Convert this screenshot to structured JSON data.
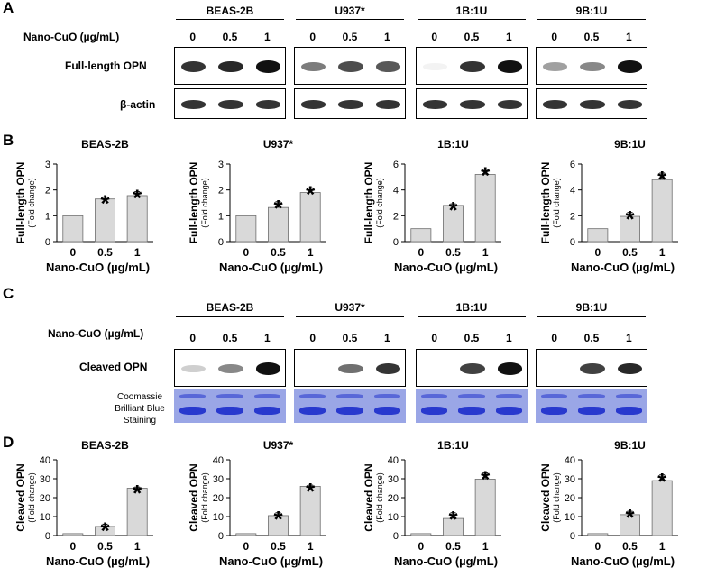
{
  "panels": {
    "a": "A",
    "b": "B",
    "c": "C",
    "d": "D"
  },
  "cell_lines": [
    "BEAS-2B",
    "U937*",
    "1B:1U",
    "9B:1U"
  ],
  "conc_row_label": "Nano-CuO (µg/mL)",
  "concentrations": [
    "0",
    "0.5",
    "1"
  ],
  "blot_labels": {
    "full_length_opn": "Full-length OPN",
    "beta_actin": "β-actin",
    "cleaved_opn": "Cleaved OPN",
    "cbb": [
      "Coomassie",
      "Brilliant Blue",
      "Staining"
    ]
  },
  "band_intensity": {
    "full_length_opn": [
      [
        0.85,
        0.9,
        1.0
      ],
      [
        0.55,
        0.75,
        0.7
      ],
      [
        0.05,
        0.85,
        1.0
      ],
      [
        0.4,
        0.5,
        1.0
      ]
    ],
    "beta_actin": [
      [
        0.85,
        0.85,
        0.85
      ],
      [
        0.85,
        0.85,
        0.85
      ],
      [
        0.85,
        0.85,
        0.85
      ],
      [
        0.85,
        0.85,
        0.85
      ]
    ],
    "cleaved_opn": [
      [
        0.2,
        0.5,
        1.0
      ],
      [
        0.0,
        0.6,
        0.85
      ],
      [
        0.0,
        0.8,
        1.0
      ],
      [
        0.0,
        0.8,
        0.9
      ]
    ]
  },
  "significance_marker": "*",
  "chart_data": [
    {
      "type": "bar",
      "panel": "B",
      "title": "BEAS-2B",
      "categories": [
        "0",
        "0.5",
        "1"
      ],
      "values": [
        1.0,
        1.65,
        1.78
      ],
      "errors": [
        0,
        0.08,
        0.15
      ],
      "significant": [
        false,
        true,
        true
      ],
      "ylabel": "Full-length OPN",
      "ylabel_sub": "(Fold change)",
      "xlabel": "Nano-CuO (µg/mL)",
      "ylim": [
        0,
        3
      ],
      "yticks": [
        0,
        1,
        2,
        3
      ]
    },
    {
      "type": "bar",
      "panel": "B",
      "title": "U937*",
      "categories": [
        "0",
        "0.5",
        "1"
      ],
      "values": [
        1.0,
        1.32,
        1.9
      ],
      "errors": [
        0,
        0.22,
        0.18
      ],
      "significant": [
        false,
        true,
        true
      ],
      "ylabel": "Full-length OPN",
      "ylabel_sub": "(Fold change)",
      "xlabel": "Nano-CuO (µg/mL)",
      "ylim": [
        0,
        3
      ],
      "yticks": [
        0,
        1,
        2,
        3
      ]
    },
    {
      "type": "bar",
      "panel": "B",
      "title": "1B:1U",
      "categories": [
        "0",
        "0.5",
        "1"
      ],
      "values": [
        1.0,
        2.8,
        5.2
      ],
      "errors": [
        0,
        0.12,
        0.4
      ],
      "significant": [
        false,
        true,
        true
      ],
      "ylabel": "Full-length OPN",
      "ylabel_sub": "(Fold change)",
      "xlabel": "Nano-CuO (µg/mL)",
      "ylim": [
        0,
        6
      ],
      "yticks": [
        0,
        2,
        4,
        6
      ]
    },
    {
      "type": "bar",
      "panel": "B",
      "title": "9B:1U",
      "categories": [
        "0",
        "0.5",
        "1"
      ],
      "values": [
        1.0,
        1.95,
        4.8
      ],
      "errors": [
        0,
        0.3,
        0.5
      ],
      "significant": [
        false,
        true,
        true
      ],
      "ylabel": "Full-length OPN",
      "ylabel_sub": "(Fold change)",
      "xlabel": "Nano-CuO (µg/mL)",
      "ylim": [
        0,
        6
      ],
      "yticks": [
        0,
        2,
        4,
        6
      ]
    },
    {
      "type": "bar",
      "panel": "D",
      "title": "BEAS-2B",
      "categories": [
        "0",
        "0.5",
        "1"
      ],
      "values": [
        1.0,
        4.8,
        25.0
      ],
      "errors": [
        0,
        1.2,
        0.6
      ],
      "significant": [
        false,
        true,
        true
      ],
      "ylabel": "Cleaved OPN",
      "ylabel_sub": "(Fold change)",
      "xlabel": "Nano-CuO (µg/mL)",
      "ylim": [
        0,
        40
      ],
      "yticks": [
        0,
        10,
        20,
        30,
        40
      ]
    },
    {
      "type": "bar",
      "panel": "D",
      "title": "U937*",
      "categories": [
        "0",
        "0.5",
        "1"
      ],
      "values": [
        1.0,
        10.5,
        26.0
      ],
      "errors": [
        0,
        1.5,
        0.6
      ],
      "significant": [
        false,
        true,
        true
      ],
      "ylabel": "Cleaved OPN",
      "ylabel_sub": "(Fold change)",
      "xlabel": "Nano-CuO (µg/mL)",
      "ylim": [
        0,
        40
      ],
      "yticks": [
        0,
        10,
        20,
        30,
        40
      ]
    },
    {
      "type": "bar",
      "panel": "D",
      "title": "1B:1U",
      "categories": [
        "0",
        "0.5",
        "1"
      ],
      "values": [
        1.0,
        9.0,
        29.8
      ],
      "errors": [
        0,
        3.0,
        3.2
      ],
      "significant": [
        false,
        true,
        true
      ],
      "ylabel": "Cleaved OPN",
      "ylabel_sub": "(Fold change)",
      "xlabel": "Nano-CuO (µg/mL)",
      "ylim": [
        0,
        40
      ],
      "yticks": [
        0,
        10,
        20,
        30,
        40
      ]
    },
    {
      "type": "bar",
      "panel": "D",
      "title": "9B:1U",
      "categories": [
        "0",
        "0.5",
        "1"
      ],
      "values": [
        1.0,
        11.0,
        29.0
      ],
      "errors": [
        0,
        1.8,
        3.0
      ],
      "significant": [
        false,
        true,
        true
      ],
      "ylabel": "Cleaved OPN",
      "ylabel_sub": "(Fold change)",
      "xlabel": "Nano-CuO (µg/mL)",
      "ylim": [
        0,
        40
      ],
      "yticks": [
        0,
        10,
        20,
        30,
        40
      ]
    }
  ],
  "colors": {
    "bar_fill": "#d9d9d9",
    "bar_stroke": "#6e6e6e",
    "band": "#111111",
    "cbb_bg": "#9aa6e6",
    "cbb_band": "#2233cc"
  }
}
